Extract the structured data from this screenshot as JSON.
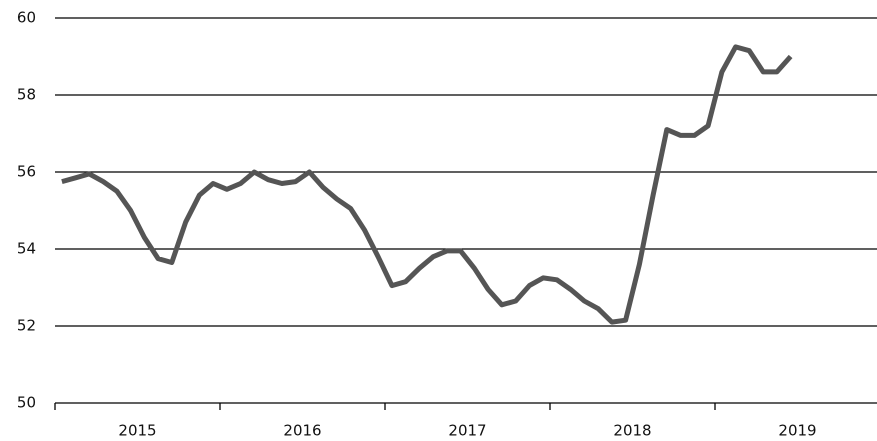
{
  "chart_data": {
    "type": "line",
    "x": [
      2015.042,
      2015.125,
      2015.208,
      2015.292,
      2015.375,
      2015.458,
      2015.542,
      2015.625,
      2015.708,
      2015.792,
      2015.875,
      2015.958,
      2016.042,
      2016.125,
      2016.208,
      2016.292,
      2016.375,
      2016.458,
      2016.542,
      2016.625,
      2016.708,
      2016.792,
      2016.875,
      2016.958,
      2017.042,
      2017.125,
      2017.208,
      2017.292,
      2017.375,
      2017.458,
      2017.542,
      2017.625,
      2017.708,
      2017.792,
      2017.875,
      2017.958,
      2018.042,
      2018.125,
      2018.208,
      2018.292,
      2018.375,
      2018.458,
      2018.542,
      2018.625,
      2018.708,
      2018.792,
      2018.875,
      2018.958,
      2019.042,
      2019.125,
      2019.208,
      2019.292,
      2019.375,
      2019.458
    ],
    "values": [
      55.75,
      55.85,
      55.95,
      55.75,
      55.5,
      55.0,
      54.3,
      53.75,
      53.65,
      54.7,
      55.4,
      55.7,
      55.55,
      55.7,
      56.0,
      55.8,
      55.7,
      55.75,
      56.0,
      55.6,
      55.3,
      55.05,
      54.5,
      53.8,
      53.05,
      53.15,
      53.5,
      53.8,
      53.95,
      53.95,
      53.5,
      52.95,
      52.55,
      52.65,
      53.05,
      53.25,
      53.2,
      52.95,
      52.65,
      52.45,
      52.1,
      52.15,
      53.6,
      55.4,
      57.1,
      56.95,
      56.95,
      57.2,
      58.6,
      59.25,
      59.15,
      58.6,
      58.6,
      59.0
    ],
    "color": "#555555",
    "xlim": [
      2015,
      2020
    ],
    "xticks": [
      {
        "value": 2015.5,
        "label": "2015"
      },
      {
        "value": 2016.5,
        "label": "2016"
      },
      {
        "value": 2017.5,
        "label": "2017"
      },
      {
        "value": 2018.5,
        "label": "2018"
      },
      {
        "value": 2019.5,
        "label": "2019"
      }
    ],
    "ylim": [
      50,
      60
    ],
    "yticks": [
      50,
      52,
      54,
      56,
      58,
      60
    ],
    "grid": true
  }
}
